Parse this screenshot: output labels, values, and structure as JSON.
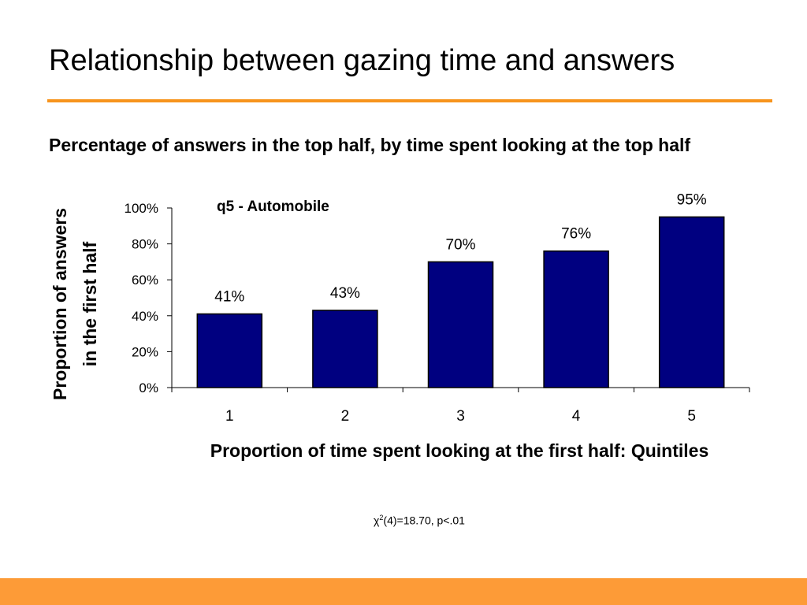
{
  "slide": {
    "title": "Relationship between gazing time and answers",
    "subtitle": "Percentage of answers in the top half, by time spent looking at the top half",
    "stat_symbol": "χ",
    "stat_sup": "2",
    "stat_rest": "(4)=18.70, p<.01"
  },
  "colors": {
    "accent_rule": "#f7941d",
    "footer_band": "#fd9b37",
    "bar_fill": "#000080"
  },
  "chart_data": {
    "type": "bar",
    "title": "q5 - Automobile",
    "xlabel": "Proportion of time spent looking at the first half: Quintiles",
    "ylabel_lines": [
      "Proportion of answers",
      "in the first half"
    ],
    "categories": [
      "1",
      "2",
      "3",
      "4",
      "5"
    ],
    "values": [
      41,
      43,
      70,
      76,
      95
    ],
    "value_labels": [
      "41%",
      "43%",
      "70%",
      "76%",
      "95%"
    ],
    "ylim": [
      0,
      100
    ],
    "yticks": [
      0,
      20,
      40,
      60,
      80,
      100
    ],
    "ytick_labels": [
      "0%",
      "20%",
      "40%",
      "60%",
      "80%",
      "100%"
    ],
    "grid": false,
    "legend": "none"
  }
}
